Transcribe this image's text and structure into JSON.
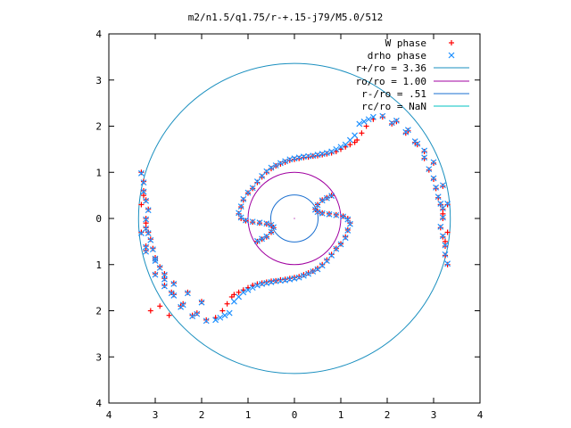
{
  "chart_data": {
    "type": "scatter",
    "title": "m2/n1.5/q1.75/r-+.15-j79/M5.0/512",
    "xlabel": "",
    "ylabel": "",
    "xlim": [
      -4,
      4
    ],
    "ylim": [
      -4,
      4
    ],
    "x_tick_labels": [
      "4",
      "3",
      "2",
      "1",
      "0",
      "1",
      "2",
      "3",
      "4"
    ],
    "y_tick_labels": [
      "4",
      "3",
      "2",
      "1",
      "0",
      "1",
      "2",
      "3",
      "4"
    ],
    "grid": false,
    "legend_position": "top-right",
    "colors": {
      "w_phase": "#ff0000",
      "drho_phase": "#1e90ff",
      "r_plus": "#1a8fbf",
      "r_o": "#a000a0",
      "r_minus": "#1a6fd0",
      "r_c": "#00c0c0"
    },
    "circles": [
      {
        "name": "r+/ro = 3.36",
        "radius": 3.36
      },
      {
        "name": "ro/ro = 1.00",
        "radius": 1.0
      },
      {
        "name": "r-/ro = .51",
        "radius": 0.51
      },
      {
        "name": "rc/ro = NaN",
        "radius": null
      }
    ],
    "series": [
      {
        "name": "W phase",
        "marker": "+",
        "x": [
          1.7,
          1.55,
          1.45,
          1.35,
          1.3,
          1.2,
          1.1,
          1.0,
          0.9,
          0.8,
          0.7,
          0.6,
          0.5,
          0.4,
          0.3,
          0.2,
          0.1,
          0.0,
          -0.1,
          -0.2,
          -0.3,
          -0.4,
          -0.5,
          -0.6,
          -0.7,
          -0.8,
          -0.9,
          -1.0,
          -1.1,
          -1.15,
          -1.2,
          -1.15,
          -1.05,
          -0.9,
          -0.75,
          -0.6,
          -0.5,
          -0.45,
          -0.5,
          -0.6,
          -0.7,
          -0.8,
          -1.7,
          -1.55,
          -1.45,
          -1.35,
          -1.3,
          -1.2,
          -1.1,
          -1.0,
          -0.9,
          -0.8,
          -0.7,
          -0.6,
          -0.5,
          -0.4,
          -0.3,
          -0.2,
          -0.1,
          0.0,
          0.1,
          0.2,
          0.3,
          0.4,
          0.5,
          0.6,
          0.7,
          0.8,
          0.9,
          1.0,
          1.1,
          1.15,
          1.2,
          1.15,
          1.05,
          0.9,
          0.75,
          0.6,
          0.5,
          0.45,
          0.5,
          0.6,
          0.7,
          0.8,
          2.2,
          2.45,
          2.65,
          2.8,
          2.9,
          3.0,
          3.05,
          3.1,
          3.15,
          3.2,
          3.2,
          3.15,
          3.2,
          3.25,
          3.25,
          3.3,
          3.3,
          3.25,
          3.2,
          3.15,
          -2.2,
          -2.45,
          -2.65,
          -2.8,
          -2.9,
          -3.0,
          -3.05,
          -3.1,
          -3.15,
          -3.2,
          -3.2,
          -3.15,
          -3.2,
          -3.25,
          -3.25,
          -3.3,
          -3.3,
          -3.25,
          -3.2,
          -3.15,
          -1.9,
          -2.1,
          -2.4,
          -2.6,
          -2.8,
          -3.0,
          -3.2,
          -3.3,
          1.9,
          2.1,
          2.4,
          2.6,
          2.8,
          3.0,
          3.2,
          3.3,
          -2.0,
          -2.3,
          -2.6,
          -2.8,
          -3.0,
          -3.2,
          -2.9,
          -3.1,
          -2.7
        ],
        "y": [
          2.15,
          2.0,
          1.85,
          1.7,
          1.65,
          1.6,
          1.55,
          1.5,
          1.45,
          1.42,
          1.4,
          1.38,
          1.36,
          1.35,
          1.33,
          1.32,
          1.3,
          1.28,
          1.26,
          1.22,
          1.18,
          1.14,
          1.08,
          1.0,
          0.9,
          0.78,
          0.65,
          0.55,
          0.4,
          0.25,
          0.1,
          0.0,
          -0.05,
          -0.08,
          -0.1,
          -0.12,
          -0.15,
          -0.2,
          -0.3,
          -0.4,
          -0.45,
          -0.5,
          -2.15,
          -2.0,
          -1.85,
          -1.7,
          -1.65,
          -1.6,
          -1.55,
          -1.5,
          -1.45,
          -1.42,
          -1.4,
          -1.38,
          -1.36,
          -1.35,
          -1.33,
          -1.32,
          -1.3,
          -1.28,
          -1.26,
          -1.22,
          -1.18,
          -1.14,
          -1.08,
          -1.0,
          -0.9,
          -0.78,
          -0.65,
          -0.55,
          -0.4,
          -0.25,
          -0.1,
          0.0,
          0.05,
          0.08,
          0.1,
          0.12,
          0.15,
          0.2,
          0.3,
          0.4,
          0.45,
          0.5,
          2.1,
          1.9,
          1.6,
          1.3,
          1.05,
          0.85,
          0.65,
          0.45,
          0.3,
          0.2,
          0.0,
          -0.2,
          -0.4,
          -0.6,
          -0.8,
          -1.0,
          -0.3,
          -0.5,
          0.1,
          0.3,
          -2.1,
          -1.9,
          -1.6,
          -1.3,
          -1.05,
          -0.85,
          -0.65,
          -0.45,
          -0.3,
          -0.2,
          0.0,
          0.2,
          0.4,
          0.6,
          0.8,
          1.0,
          0.3,
          0.5,
          -0.1,
          -0.3,
          -2.2,
          -2.05,
          -1.85,
          -1.65,
          -1.45,
          -1.2,
          -0.7,
          -0.3,
          2.2,
          2.05,
          1.85,
          1.65,
          1.45,
          1.2,
          0.7,
          0.3,
          -1.8,
          -1.6,
          -1.4,
          -1.2,
          -0.9,
          -0.6,
          -1.9,
          -2.0,
          -2.1
        ]
      },
      {
        "name": "drho phase",
        "marker": "x",
        "x": [
          1.7,
          1.6,
          1.5,
          1.4,
          1.3,
          1.2,
          1.1,
          1.0,
          0.9,
          0.8,
          0.7,
          0.6,
          0.5,
          0.4,
          0.3,
          0.2,
          0.1,
          0.0,
          -0.1,
          -0.2,
          -0.3,
          -0.4,
          -0.5,
          -0.6,
          -0.7,
          -0.8,
          -0.9,
          -1.0,
          -1.1,
          -1.15,
          -1.2,
          -1.15,
          -1.05,
          -0.9,
          -0.75,
          -0.6,
          -0.5,
          -0.45,
          -0.5,
          -0.6,
          -0.7,
          -0.8,
          -1.7,
          -1.6,
          -1.5,
          -1.4,
          -1.3,
          -1.2,
          -1.1,
          -1.0,
          -0.9,
          -0.8,
          -0.7,
          -0.6,
          -0.5,
          -0.4,
          -0.3,
          -0.2,
          -0.1,
          0.0,
          0.1,
          0.2,
          0.3,
          0.4,
          0.5,
          0.6,
          0.7,
          0.8,
          0.9,
          1.0,
          1.1,
          1.15,
          1.2,
          1.15,
          1.05,
          0.9,
          0.75,
          0.6,
          0.5,
          0.45,
          0.5,
          0.6,
          0.7,
          0.8,
          2.2,
          2.45,
          2.65,
          2.8,
          2.9,
          3.0,
          3.05,
          3.1,
          3.15,
          3.2,
          3.2,
          3.15,
          3.2,
          3.25,
          3.25,
          3.3,
          -2.2,
          -2.45,
          -2.65,
          -2.8,
          -2.9,
          -3.0,
          -3.05,
          -3.1,
          -3.15,
          -3.2,
          -3.2,
          -3.15,
          -3.2,
          -3.25,
          -3.25,
          -3.3,
          -1.9,
          -2.1,
          -2.4,
          -2.6,
          -2.8,
          -3.0,
          -3.2,
          -3.3,
          1.9,
          2.1,
          2.4,
          2.6,
          2.8,
          3.0,
          3.2,
          3.3,
          -2.0,
          -2.3,
          -2.6,
          -2.8,
          -3.0,
          -3.2
        ],
        "y": [
          2.2,
          2.15,
          2.1,
          2.05,
          1.8,
          1.7,
          1.6,
          1.55,
          1.5,
          1.45,
          1.42,
          1.4,
          1.38,
          1.36,
          1.35,
          1.34,
          1.32,
          1.3,
          1.28,
          1.24,
          1.2,
          1.15,
          1.1,
          1.02,
          0.92,
          0.8,
          0.66,
          0.56,
          0.42,
          0.26,
          0.12,
          0.02,
          -0.04,
          -0.07,
          -0.09,
          -0.11,
          -0.14,
          -0.19,
          -0.29,
          -0.39,
          -0.44,
          -0.49,
          -2.2,
          -2.15,
          -2.1,
          -2.05,
          -1.8,
          -1.7,
          -1.6,
          -1.55,
          -1.5,
          -1.45,
          -1.42,
          -1.4,
          -1.38,
          -1.36,
          -1.35,
          -1.34,
          -1.32,
          -1.3,
          -1.28,
          -1.24,
          -1.2,
          -1.15,
          -1.1,
          -1.02,
          -0.92,
          -0.8,
          -0.66,
          -0.56,
          -0.42,
          -0.26,
          -0.12,
          -0.02,
          0.04,
          0.07,
          0.09,
          0.11,
          0.14,
          0.19,
          0.29,
          0.39,
          0.44,
          0.49,
          2.12,
          1.92,
          1.62,
          1.32,
          1.07,
          0.87,
          0.67,
          0.47,
          0.32,
          0.22,
          0.02,
          -0.18,
          -0.38,
          -0.58,
          -0.78,
          -0.98,
          -2.12,
          -1.92,
          -1.62,
          -1.32,
          -1.07,
          -0.87,
          -0.67,
          -0.47,
          -0.32,
          -0.22,
          -0.02,
          0.18,
          0.38,
          0.58,
          0.78,
          0.98,
          -2.22,
          -2.07,
          -1.87,
          -1.67,
          -1.47,
          -1.22,
          -0.72,
          -0.32,
          2.22,
          2.07,
          1.87,
          1.67,
          1.47,
          1.22,
          0.72,
          0.32,
          -1.82,
          -1.62,
          -1.42,
          -1.22,
          -0.92,
          -0.62
        ]
      }
    ]
  }
}
